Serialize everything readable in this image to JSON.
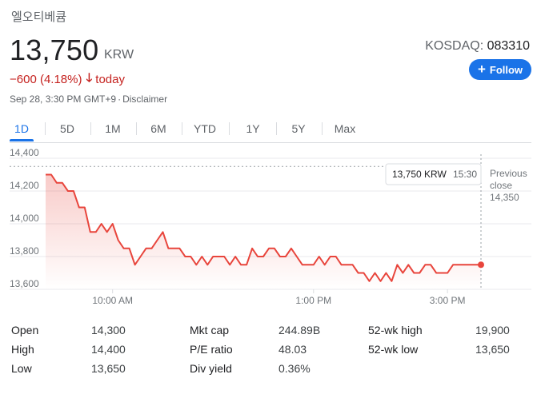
{
  "stock": {
    "name": "엘오티베큠",
    "price": "13,750",
    "currency": "KRW",
    "exchange_label": "KOSDAQ:",
    "ticker": "083310",
    "change": "−600 (4.18%)",
    "change_period": "today",
    "timestamp": "Sep 28, 3:30 PM GMT+9",
    "disclaimer": "Disclaimer",
    "follow_label": "Follow"
  },
  "tabs": [
    {
      "label": "1D",
      "active": true
    },
    {
      "label": "5D",
      "active": false
    },
    {
      "label": "1M",
      "active": false
    },
    {
      "label": "6M",
      "active": false
    },
    {
      "label": "YTD",
      "active": false
    },
    {
      "label": "1Y",
      "active": false
    },
    {
      "label": "5Y",
      "active": false
    },
    {
      "label": "Max",
      "active": false
    }
  ],
  "colors": {
    "accent": "#1a73e8",
    "down": "#c5221f",
    "line": "#e8453c"
  },
  "chart_data": {
    "type": "area",
    "y_ticks": [
      "14,400",
      "14,200",
      "14,000",
      "13,800",
      "13,600"
    ],
    "ylim": [
      13600,
      14400
    ],
    "x_range_minutes": [
      540,
      930
    ],
    "x_ticks": [
      {
        "label": "10:00 AM",
        "minute": 600
      },
      {
        "label": "1:00 PM",
        "minute": 780
      },
      {
        "label": "3:00 PM",
        "minute": 900
      }
    ],
    "previous_close": {
      "label_line1": "Previous",
      "label_line2": "close",
      "value_label": "14,350",
      "value": 14350
    },
    "tooltip": {
      "price": "13,750 KRW",
      "time": "15:30"
    },
    "series": [
      {
        "x": [
          540,
          545,
          550,
          555,
          560,
          565,
          570,
          575,
          580,
          585,
          590,
          595,
          600,
          605,
          610,
          615,
          620,
          625,
          630,
          635,
          640,
          645,
          650,
          655,
          660,
          665,
          670,
          675,
          680,
          685,
          690,
          695,
          700,
          705,
          710,
          715,
          720,
          725,
          730,
          735,
          740,
          745,
          750,
          755,
          760,
          765,
          770,
          775,
          780,
          785,
          790,
          795,
          800,
          805,
          810,
          815,
          820,
          825,
          830,
          835,
          840,
          845,
          850,
          855,
          860,
          865,
          870,
          875,
          880,
          885,
          890,
          895,
          900,
          905,
          910,
          915,
          920,
          925,
          930
        ],
        "y": [
          14300,
          14300,
          14250,
          14250,
          14200,
          14200,
          14100,
          14100,
          13950,
          13950,
          14000,
          13950,
          14000,
          13900,
          13850,
          13850,
          13750,
          13800,
          13850,
          13850,
          13900,
          13950,
          13850,
          13850,
          13850,
          13800,
          13800,
          13750,
          13800,
          13750,
          13800,
          13800,
          13800,
          13750,
          13800,
          13750,
          13750,
          13850,
          13800,
          13800,
          13850,
          13850,
          13800,
          13800,
          13850,
          13800,
          13750,
          13750,
          13750,
          13800,
          13750,
          13800,
          13800,
          13750,
          13750,
          13750,
          13700,
          13700,
          13650,
          13700,
          13650,
          13700,
          13650,
          13750,
          13700,
          13750,
          13700,
          13700,
          13750,
          13750,
          13700,
          13700,
          13700,
          13750,
          13750,
          13750,
          13750,
          13750,
          13750
        ]
      }
    ]
  },
  "stats": {
    "col1": [
      {
        "label": "Open",
        "value": "14,300"
      },
      {
        "label": "High",
        "value": "14,400"
      },
      {
        "label": "Low",
        "value": "13,650"
      }
    ],
    "col2": [
      {
        "label": "Mkt cap",
        "value": "244.89B"
      },
      {
        "label": "P/E ratio",
        "value": "48.03"
      },
      {
        "label": "Div yield",
        "value": "0.36%"
      }
    ],
    "col3": [
      {
        "label": "52-wk high",
        "value": "19,900"
      },
      {
        "label": "52-wk low",
        "value": "13,650"
      }
    ]
  }
}
